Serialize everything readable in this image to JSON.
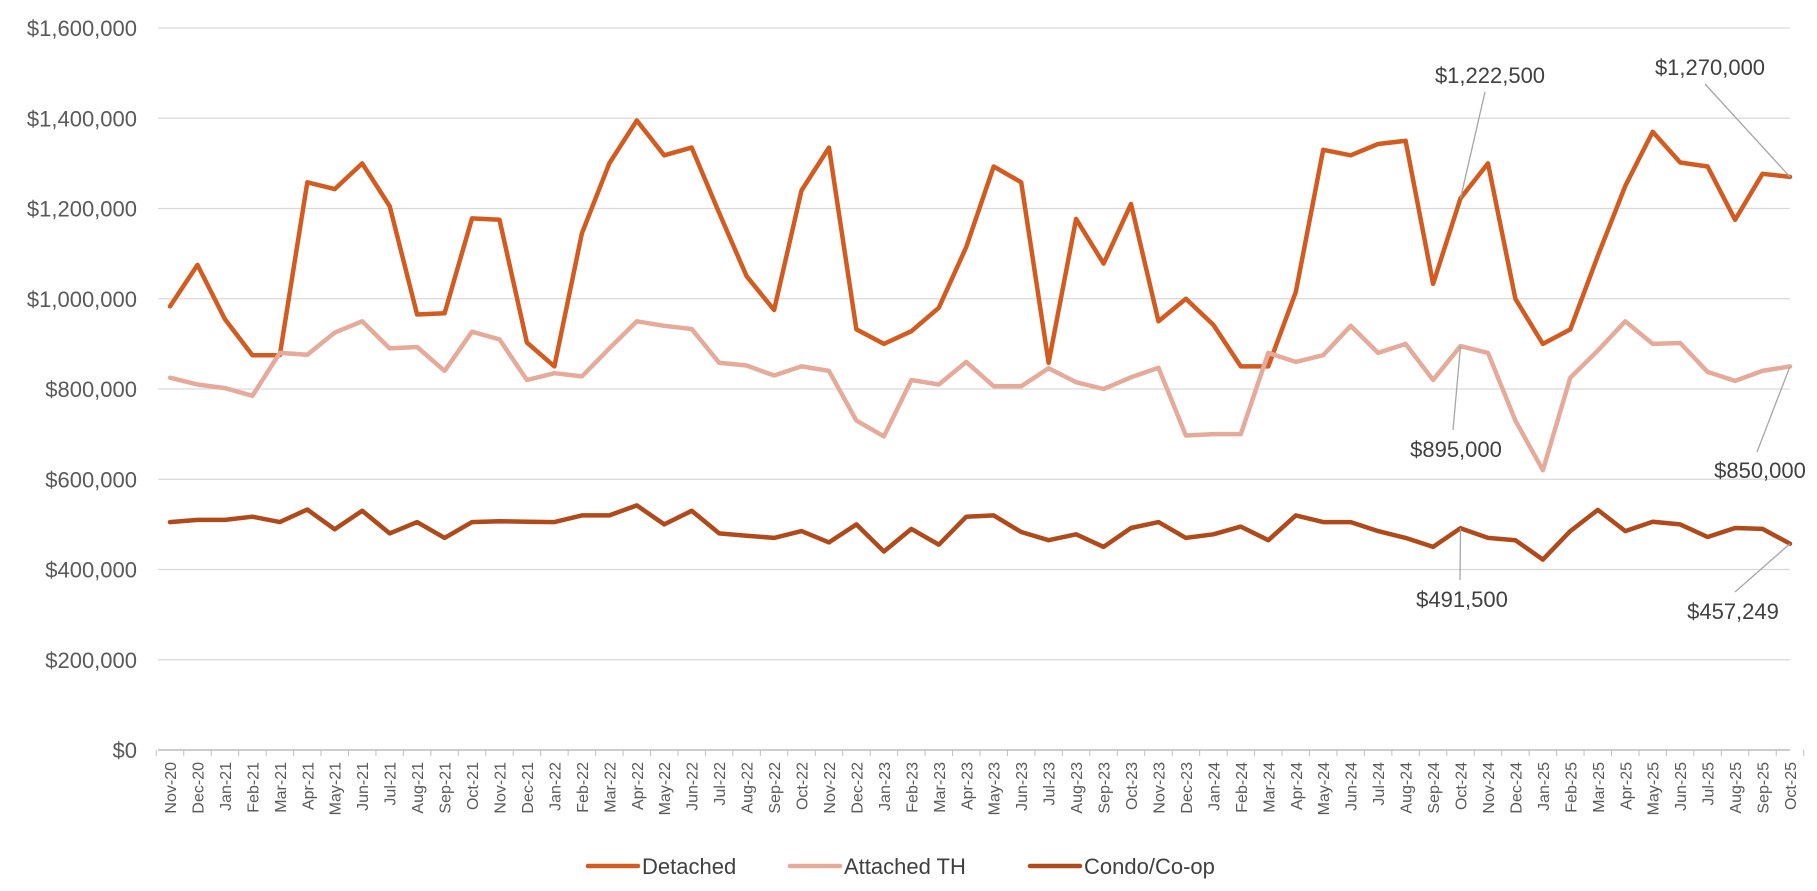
{
  "chart_data": {
    "type": "line",
    "title": "",
    "xlabel": "",
    "ylabel": "",
    "ylim": [
      0,
      1600000
    ],
    "yticks": [
      {
        "value": 0,
        "label": "$0"
      },
      {
        "value": 200000,
        "label": "$200,000"
      },
      {
        "value": 400000,
        "label": "$400,000"
      },
      {
        "value": 600000,
        "label": "$600,000"
      },
      {
        "value": 800000,
        "label": "$800,000"
      },
      {
        "value": 1000000,
        "label": "$1,000,000"
      },
      {
        "value": 1200000,
        "label": "$1,200,000"
      },
      {
        "value": 1400000,
        "label": "$1,400,000"
      },
      {
        "value": 1600000,
        "label": "$1,600,000"
      }
    ],
    "grid": true,
    "legend_position": "bottom",
    "categories": [
      "Nov-20",
      "Dec-20",
      "Jan-21",
      "Feb-21",
      "Mar-21",
      "Apr-21",
      "May-21",
      "Jun-21",
      "Jul-21",
      "Aug-21",
      "Sep-21",
      "Oct-21",
      "Nov-21",
      "Dec-21",
      "Jan-22",
      "Feb-22",
      "Mar-22",
      "Apr-22",
      "May-22",
      "Jun-22",
      "Jul-22",
      "Aug-22",
      "Sep-22",
      "Oct-22",
      "Nov-22",
      "Dec-22",
      "Jan-23",
      "Feb-23",
      "Mar-23",
      "Apr-23",
      "May-23",
      "Jun-23",
      "Jul-23",
      "Aug-23",
      "Sep-23",
      "Oct-23",
      "Nov-23",
      "Dec-23",
      "Jan-24",
      "Feb-24",
      "Mar-24",
      "Apr-24",
      "May-24",
      "Jun-24",
      "Jul-24",
      "Aug-24",
      "Sep-24",
      "Oct-24",
      "Nov-24",
      "Dec-24",
      "Jan-25",
      "Feb-25",
      "Mar-25",
      "Apr-25",
      "May-25",
      "Jun-25",
      "Jul-25",
      "Aug-25",
      "Sep-25",
      "Oct-25"
    ],
    "series": [
      {
        "name": "Detached",
        "color": "#d35b1f",
        "values": [
          983000,
          1075000,
          955000,
          875000,
          875000,
          1258000,
          1243000,
          1300000,
          1205000,
          965000,
          968000,
          1178000,
          1175000,
          903000,
          850000,
          1145000,
          1300000,
          1395000,
          1318000,
          1335000,
          1190000,
          1050000,
          975000,
          1240000,
          1335000,
          932000,
          900000,
          928000,
          980000,
          1115000,
          1293000,
          1258000,
          858000,
          1177000,
          1078000,
          1210000,
          950000,
          1000000,
          942000,
          850000,
          850000,
          1015000,
          1330000,
          1318000,
          1343000,
          1350000,
          1033000,
          1222500,
          1300000,
          1000000,
          900000,
          932000,
          1095000,
          1250000,
          1370000,
          1302000,
          1293000,
          1175000,
          1277000,
          1270000
        ]
      },
      {
        "name": "Attached TH",
        "color": "#e6aa9a",
        "values": [
          825000,
          810000,
          802000,
          785000,
          880000,
          876000,
          925000,
          950000,
          890000,
          893000,
          840000,
          927000,
          910000,
          820000,
          835000,
          828000,
          890000,
          950000,
          940000,
          933000,
          858000,
          852000,
          830000,
          850000,
          840000,
          730000,
          695000,
          820000,
          810000,
          860000,
          806000,
          806000,
          846000,
          815000,
          800000,
          826000,
          847000,
          697000,
          700000,
          700000,
          880000,
          860000,
          875000,
          940000,
          880000,
          900000,
          820000,
          895000,
          880000,
          730000,
          620000,
          825000,
          885000,
          950000,
          900000,
          902000,
          838000,
          818000,
          840000,
          850000
        ]
      },
      {
        "name": "Condo/Co-op",
        "color": "#b04a1a",
        "values": [
          505000,
          510000,
          510000,
          517000,
          505000,
          533000,
          489000,
          530000,
          480000,
          505000,
          470000,
          505000,
          507000,
          506000,
          505000,
          520000,
          520000,
          542000,
          500000,
          530000,
          480000,
          475000,
          470000,
          485000,
          460000,
          500000,
          440000,
          490000,
          455000,
          517000,
          520000,
          483000,
          465000,
          478000,
          450000,
          492000,
          505000,
          470000,
          478000,
          495000,
          465000,
          520000,
          505000,
          505000,
          485000,
          470000,
          450000,
          491500,
          470000,
          465000,
          422000,
          485000,
          532000,
          485000,
          506000,
          500000,
          472000,
          492000,
          490000,
          457249
        ]
      }
    ],
    "annotations": [
      {
        "text": "$1,222,500",
        "series": "Detached",
        "index": 47
      },
      {
        "text": "$1,270,000",
        "series": "Detached",
        "index": 59
      },
      {
        "text": "$895,000",
        "series": "Attached TH",
        "index": 47
      },
      {
        "text": "$850,000",
        "series": "Attached TH",
        "index": 59
      },
      {
        "text": "$491,500",
        "series": "Condo/Co-op",
        "index": 47
      },
      {
        "text": "$457,249",
        "series": "Condo/Co-op",
        "index": 59
      }
    ]
  }
}
